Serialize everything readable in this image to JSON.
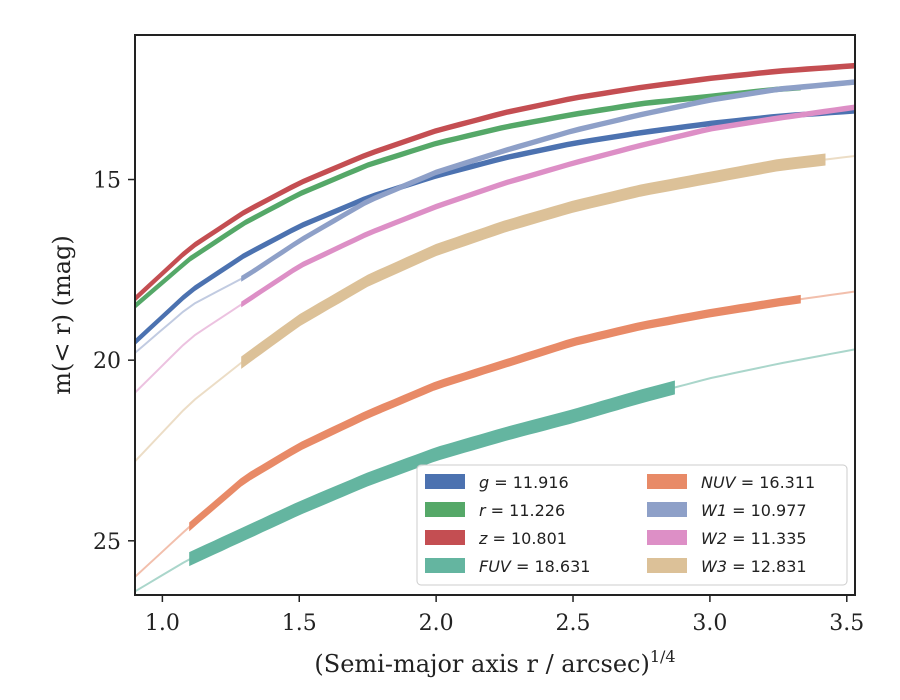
{
  "chart_data": {
    "type": "line",
    "xlabel": "(Semi-major axis r / arcsec)",
    "xlabel_sup": "1/4",
    "ylabel": "m(< r) (mag)",
    "xlim": [
      0.9,
      3.53
    ],
    "ylim": [
      26.5,
      11.0
    ],
    "y_inverted": true,
    "xticks": [
      1.0,
      1.5,
      2.0,
      2.5,
      3.0,
      3.5
    ],
    "xtick_labels": [
      "1.0",
      "1.5",
      "2.0",
      "2.5",
      "3.0",
      "3.5"
    ],
    "yticks": [
      15,
      20,
      25
    ],
    "ytick_labels": [
      "15",
      "20",
      "25"
    ],
    "legend_placement": "lower-right",
    "series": [
      {
        "name": "g",
        "label_value": "11.916",
        "color": "#4c72b0",
        "x_start": 0.9,
        "x_end": 3.53,
        "x_solid": [
          0.9,
          3.53
        ],
        "band": 0.12,
        "x": [
          0.9,
          1.1,
          1.3,
          1.5,
          1.75,
          2.0,
          2.25,
          2.5,
          2.75,
          3.0,
          3.25,
          3.53
        ],
        "y": [
          19.5,
          18.1,
          17.1,
          16.3,
          15.5,
          14.9,
          14.4,
          14.0,
          13.7,
          13.45,
          13.25,
          13.1
        ]
      },
      {
        "name": "r",
        "label_value": "11.226",
        "color": "#55a868",
        "x_start": 0.9,
        "x_end": 3.53,
        "x_solid": [
          0.9,
          3.33
        ],
        "band": 0.12,
        "x": [
          0.9,
          1.1,
          1.3,
          1.5,
          1.75,
          2.0,
          2.25,
          2.5,
          2.75,
          3.0,
          3.25,
          3.53
        ],
        "y": [
          18.5,
          17.2,
          16.2,
          15.4,
          14.6,
          14.0,
          13.55,
          13.2,
          12.9,
          12.7,
          12.5,
          12.35
        ]
      },
      {
        "name": "z",
        "label_value": "10.801",
        "color": "#c44e52",
        "x_start": 0.9,
        "x_end": 3.53,
        "x_solid": [
          0.9,
          3.53
        ],
        "band": 0.12,
        "x": [
          0.9,
          1.1,
          1.3,
          1.5,
          1.75,
          2.0,
          2.25,
          2.5,
          2.75,
          3.0,
          3.25,
          3.53
        ],
        "y": [
          18.3,
          16.9,
          15.9,
          15.1,
          14.3,
          13.65,
          13.15,
          12.75,
          12.45,
          12.2,
          12.0,
          11.85
        ]
      },
      {
        "name": "FUV",
        "label_value": "18.631",
        "color": "#64b5a0",
        "x_start": 0.9,
        "x_end": 3.53,
        "x_solid": [
          1.1,
          2.87
        ],
        "band": 0.35,
        "x": [
          0.9,
          1.1,
          1.3,
          1.5,
          1.75,
          2.0,
          2.25,
          2.5,
          2.75,
          3.0,
          3.25,
          3.53
        ],
        "y": [
          26.4,
          25.5,
          24.8,
          24.1,
          23.3,
          22.6,
          22.05,
          21.55,
          21.0,
          20.5,
          20.1,
          19.7
        ]
      },
      {
        "name": "NUV",
        "label_value": "16.311",
        "color": "#e88a67",
        "x_start": 0.9,
        "x_end": 3.53,
        "x_solid": [
          1.1,
          3.33
        ],
        "band": 0.2,
        "x": [
          0.9,
          1.1,
          1.3,
          1.5,
          1.75,
          2.0,
          2.25,
          2.5,
          2.75,
          3.0,
          3.25,
          3.53
        ],
        "y": [
          26.0,
          24.6,
          23.3,
          22.4,
          21.5,
          20.7,
          20.1,
          19.5,
          19.05,
          18.7,
          18.4,
          18.1
        ]
      },
      {
        "name": "W1",
        "label_value": "10.977",
        "color": "#8ea0c8",
        "x_start": 0.9,
        "x_end": 3.53,
        "x_solid": [
          1.29,
          3.53
        ],
        "band": 0.12,
        "x": [
          0.9,
          1.1,
          1.3,
          1.5,
          1.75,
          2.0,
          2.25,
          2.5,
          2.75,
          3.0,
          3.25,
          3.53
        ],
        "y": [
          19.8,
          18.5,
          17.7,
          16.7,
          15.6,
          14.8,
          14.2,
          13.65,
          13.2,
          12.8,
          12.5,
          12.3
        ]
      },
      {
        "name": "W2",
        "label_value": "11.335",
        "color": "#dd8fc6",
        "x_start": 0.9,
        "x_end": 3.53,
        "x_solid": [
          1.29,
          3.53
        ],
        "band": 0.12,
        "x": [
          0.9,
          1.1,
          1.3,
          1.5,
          1.75,
          2.0,
          2.25,
          2.5,
          2.75,
          3.0,
          3.25,
          3.53
        ],
        "y": [
          20.9,
          19.4,
          18.4,
          17.4,
          16.5,
          15.75,
          15.1,
          14.55,
          14.05,
          13.6,
          13.3,
          13.0
        ]
      },
      {
        "name": "W3",
        "label_value": "12.831",
        "color": "#dcc198",
        "x_start": 0.9,
        "x_end": 3.53,
        "x_solid": [
          1.29,
          3.42
        ],
        "band": 0.3,
        "x": [
          0.9,
          1.1,
          1.3,
          1.5,
          1.75,
          2.0,
          2.25,
          2.5,
          2.75,
          3.0,
          3.25,
          3.53
        ],
        "y": [
          22.8,
          21.2,
          20.0,
          18.9,
          17.8,
          16.95,
          16.3,
          15.75,
          15.3,
          14.95,
          14.6,
          14.35
        ]
      }
    ],
    "legend_columns": [
      [
        "g",
        "r",
        "z",
        "FUV"
      ],
      [
        "NUV",
        "W1",
        "W2",
        "W3"
      ]
    ]
  }
}
